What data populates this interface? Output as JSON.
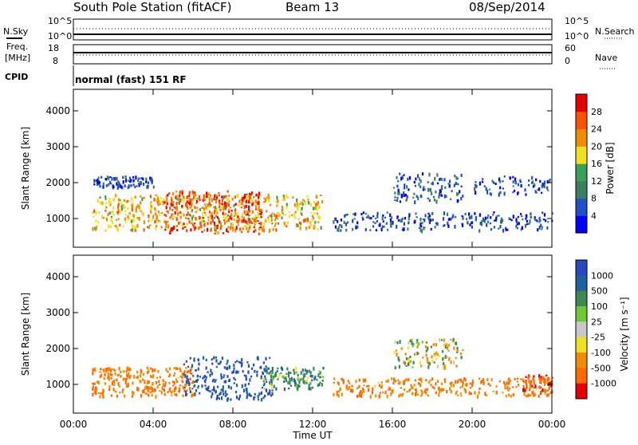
{
  "header": {
    "station": "South Pole Station (fitACF)",
    "beam": "Beam 13",
    "date": "08/Sep/2014",
    "cpid_label": "CPID",
    "cpid_value": "normal (fast) 151 RF"
  },
  "aux_panels": {
    "nsky": {
      "left_label": "N.Sky",
      "right_label": "N.Search",
      "left_ticks": [
        "10^5",
        "10^0"
      ],
      "right_ticks": [
        "10^5",
        "10^0"
      ]
    },
    "freq": {
      "left_label_line1": "Freq.",
      "left_label_line2": "[MHz]",
      "right_label": "Nave",
      "left_ticks": [
        "18",
        "8"
      ],
      "right_ticks": [
        "60",
        "0"
      ]
    }
  },
  "colors": {
    "power_scale": [
      "#0000ff",
      "#2050c8",
      "#3a8060",
      "#3c9e58",
      "#f0e020",
      "#f08c00",
      "#ff5000",
      "#e60000"
    ],
    "velocity_scale": [
      "#2848c0",
      "#2060a0",
      "#3c8850",
      "#6ec830",
      "#c8c8c8",
      "#f0e020",
      "#f08c00",
      "#ff6a00",
      "#e60000"
    ]
  },
  "chart_data": [
    {
      "type": "heatmap",
      "title": "Power",
      "ylabel": "Slant Range [km]",
      "xlabel": "Time UT",
      "x_ticks": [
        "00:00",
        "04:00",
        "08:00",
        "12:00",
        "16:00",
        "20:00",
        "00:00"
      ],
      "y_ticks": [
        "1000",
        "2000",
        "3000",
        "4000"
      ],
      "ylim": [
        200,
        4600
      ],
      "colorbar": {
        "label": "Power [dB]",
        "ticks": [
          "4",
          "8",
          "12",
          "16",
          "20",
          "24",
          "28"
        ]
      },
      "bands": [
        {
          "t0": 0.9,
          "t1": 12.5,
          "r0": 700,
          "r1": 1700,
          "value": 20,
          "density": 0.8
        },
        {
          "t0": 4.5,
          "t1": 9.5,
          "r0": 600,
          "r1": 1800,
          "value": 27,
          "density": 0.8
        },
        {
          "t0": 1.0,
          "t1": 4.0,
          "r0": 1900,
          "r1": 2200,
          "value": 6,
          "density": 0.5
        },
        {
          "t0": 16.0,
          "t1": 19.5,
          "r0": 1500,
          "r1": 2300,
          "value": 7,
          "density": 0.5
        },
        {
          "t0": 13.0,
          "t1": 24.0,
          "r0": 700,
          "r1": 1200,
          "value": 6,
          "density": 0.35
        },
        {
          "t0": 20.0,
          "t1": 24.0,
          "r0": 1700,
          "r1": 2200,
          "value": 6,
          "density": 0.3
        }
      ]
    },
    {
      "type": "heatmap",
      "title": "Velocity",
      "ylabel": "Slant Range [km]",
      "xlabel": "Time UT",
      "x_ticks": [
        "00:00",
        "04:00",
        "08:00",
        "12:00",
        "16:00",
        "20:00",
        "00:00"
      ],
      "y_ticks": [
        "1000",
        "2000",
        "3000",
        "4000"
      ],
      "ylim": [
        200,
        4600
      ],
      "colorbar": {
        "label": "Velocity [m s⁻¹]",
        "ticks": [
          "1000",
          "500",
          "100",
          "25",
          "-25",
          "-100",
          "-500",
          "-1000"
        ]
      },
      "bands": [
        {
          "t0": 0.9,
          "t1": 6.0,
          "r0": 700,
          "r1": 1500,
          "value": -300,
          "density": 0.85
        },
        {
          "t0": 5.5,
          "t1": 10.0,
          "r0": 600,
          "r1": 1800,
          "value": 700,
          "density": 0.8
        },
        {
          "t0": 9.5,
          "t1": 12.5,
          "r0": 900,
          "r1": 1500,
          "value": 200,
          "density": 0.7
        },
        {
          "t0": 16.0,
          "t1": 19.5,
          "r0": 1500,
          "r1": 2300,
          "value": 0,
          "density": 0.5
        },
        {
          "t0": 13.0,
          "t1": 24.0,
          "r0": 700,
          "r1": 1200,
          "value": -300,
          "density": 0.4
        },
        {
          "t0": 22.5,
          "t1": 24.0,
          "r0": 800,
          "r1": 1300,
          "value": -600,
          "density": 0.6
        }
      ]
    }
  ]
}
